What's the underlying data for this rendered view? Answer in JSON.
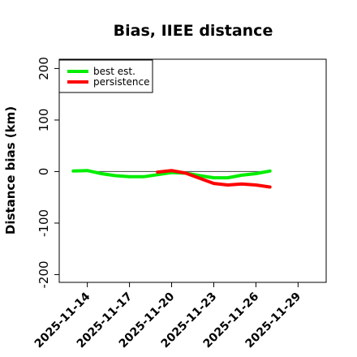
{
  "chart_data": {
    "type": "line",
    "title": "Bias, IIEE distance",
    "xlabel": "",
    "ylabel": "Distance bias (km)",
    "x_range": [
      "2025-11-12",
      "2025-12-01"
    ],
    "xticks": [
      "2025-11-14",
      "2025-11-17",
      "2025-11-20",
      "2025-11-23",
      "2025-11-26",
      "2025-11-29"
    ],
    "ylim": [
      -215,
      218
    ],
    "yticks": [
      -200,
      -100,
      0,
      100,
      200
    ],
    "legend_position": "top-left",
    "reference_line": 0,
    "series": [
      {
        "name": "best est.",
        "color": "#00ee00",
        "x": [
          "2025-11-13",
          "2025-11-14",
          "2025-11-15",
          "2025-11-16",
          "2025-11-17",
          "2025-11-18",
          "2025-11-19",
          "2025-11-20",
          "2025-11-21",
          "2025-11-22",
          "2025-11-23",
          "2025-11-24",
          "2025-11-25",
          "2025-11-26",
          "2025-11-27"
        ],
        "values": [
          1,
          2,
          -4,
          -8,
          -10,
          -10,
          -6,
          -2,
          -3,
          -8,
          -12,
          -12,
          -7,
          -4,
          1
        ]
      },
      {
        "name": "persistence",
        "color": "#ff0000",
        "x": [
          "2025-11-19",
          "2025-11-20",
          "2025-11-21",
          "2025-11-22",
          "2025-11-23",
          "2025-11-24",
          "2025-11-25",
          "2025-11-26",
          "2025-11-27"
        ],
        "values": [
          -1,
          2,
          -3,
          -13,
          -23,
          -26,
          -24,
          -26,
          -30
        ]
      }
    ]
  }
}
